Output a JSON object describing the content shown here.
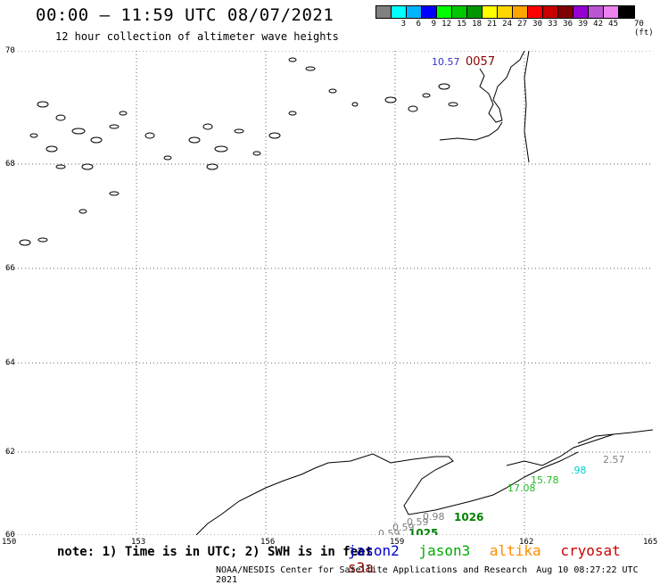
{
  "header": {
    "title": "00:00 – 11:59 UTC 08/07/2021",
    "subtitle": "12 hour collection of altimeter wave heights"
  },
  "colorbar": {
    "colors": [
      "#808080",
      "#00ffff",
      "#00b4ff",
      "#0000ff",
      "#00ff00",
      "#00c800",
      "#009600",
      "#ffff00",
      "#ffd700",
      "#ffa500",
      "#ff0000",
      "#c80000",
      "#800000",
      "#9400d3",
      "#ba55d3",
      "#ee82ee",
      "#000000"
    ],
    "ticks": [
      "3",
      "6",
      "9",
      "12",
      "15",
      "18",
      "21",
      "24",
      "27",
      "30",
      "33",
      "36",
      "39",
      "42",
      "45",
      "70"
    ],
    "unit_label": "(ft)"
  },
  "map": {
    "lat_labels": [
      "70",
      "68",
      "66",
      "64",
      "62",
      "60"
    ],
    "lon_labels": [
      "150",
      "153",
      "156",
      "159",
      "162",
      "165"
    ],
    "lon_range": [
      150,
      165
    ],
    "lat_range": [
      60,
      70
    ],
    "wave_labels": [
      {
        "text": "10.57",
        "color": "#3333cc"
      },
      {
        "text": "0057",
        "color": "#8b0000"
      },
      {
        "text": "2.57",
        "color": "#808080"
      },
      {
        "text": ".98",
        "color": "#00ced1"
      },
      {
        "text": "15.78",
        "color": "#22bb22"
      },
      {
        "text": "17.08",
        "color": "#22bb22"
      },
      {
        "text": "1026",
        "color": "#008000"
      },
      {
        "text": "1025",
        "color": "#008000"
      },
      {
        "text": "0.59",
        "color": "#808080"
      },
      {
        "text": "0.59",
        "color": "#808080"
      },
      {
        "text": "0.59",
        "color": "#808080"
      },
      {
        "text": "0.98",
        "color": "#808080"
      }
    ]
  },
  "footer": {
    "note": "note: 1) Time is in UTC; 2) SWH is in feet",
    "satellites": [
      {
        "name": "jason2",
        "color": "#0000cc"
      },
      {
        "name": "jason3",
        "color": "#00aa00"
      },
      {
        "name": "altika",
        "color": "#ff8c00"
      },
      {
        "name": "cryosat",
        "color": "#cc0000"
      },
      {
        "name": "s3a",
        "color": "#8b0000"
      }
    ],
    "credit": "NOAA/NESDIS Center for Satellite Applications and Research",
    "timestamp": "Aug 10 08:27:22 UTC 2021"
  }
}
